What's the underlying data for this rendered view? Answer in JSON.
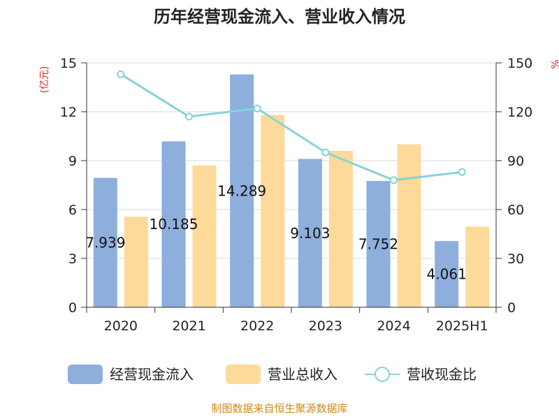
{
  "chart_data": {
    "type": "bar",
    "title": "历年经营现金流入、营业收入情况",
    "categories": [
      "2020",
      "2021",
      "2022",
      "2023",
      "2024",
      "2025H1"
    ],
    "left_axis": {
      "unit": "(亿元)",
      "ylim": [
        0,
        15
      ],
      "ticks": [
        0,
        3,
        6,
        9,
        12,
        15
      ]
    },
    "right_axis": {
      "unit": "%",
      "ylim": [
        0,
        150
      ],
      "ticks": [
        0,
        30,
        60,
        90,
        120,
        150
      ]
    },
    "series": [
      {
        "name": "经营现金流入",
        "type": "bar",
        "axis": "left",
        "color": "#8eaedc",
        "values": [
          7.939,
          10.185,
          14.289,
          9.103,
          7.752,
          4.061
        ]
      },
      {
        "name": "营业总收入",
        "type": "bar",
        "axis": "left",
        "color": "#fdd99a",
        "values": [
          5.55,
          8.7,
          11.8,
          9.6,
          10.0,
          4.95
        ]
      },
      {
        "name": "营收现金比",
        "type": "line",
        "axis": "right",
        "color": "#86d3d6",
        "values": [
          143,
          117,
          122,
          95,
          78,
          83
        ]
      }
    ],
    "data_labels": [
      "7.939",
      "10.185",
      "14.289",
      "9.103",
      "7.752",
      "4.061"
    ],
    "legend_position": "bottom",
    "grid": true
  },
  "footer": "制图数据来自恒生聚源数据库"
}
